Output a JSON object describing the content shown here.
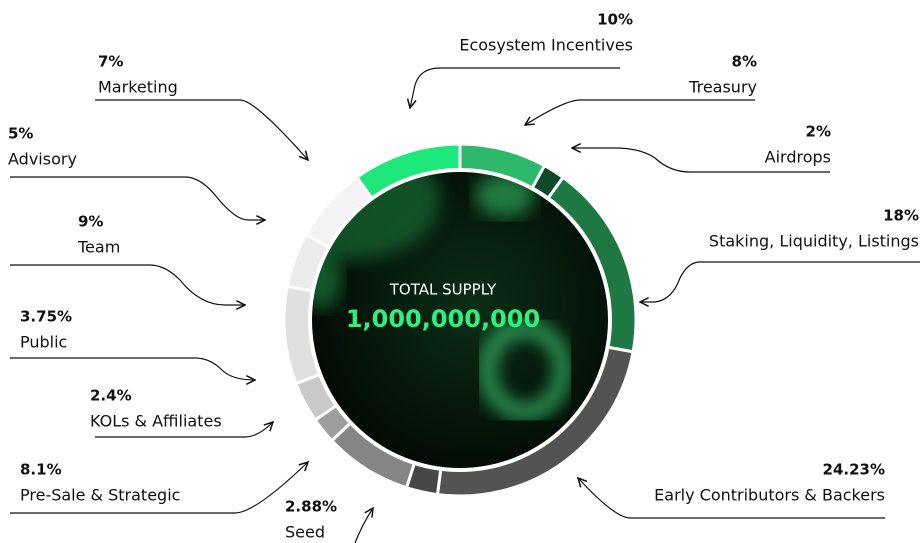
{
  "chart_data": {
    "type": "donut",
    "center_label": "TOTAL SUPPLY",
    "center_value": "1,000,000,000",
    "categories": [
      "Ecosystem Incentives",
      "Treasury",
      "Airdrops",
      "Staking, Liquidity, Listings",
      "Early Contributors & Backers",
      "Seed",
      "Pre-Sale & Strategic",
      "KOLs & Affiliates",
      "Public",
      "Team",
      "Advisory",
      "Marketing"
    ],
    "values": [
      10,
      8,
      2,
      18,
      24.23,
      2.88,
      8.1,
      2.4,
      3.75,
      9,
      5,
      7
    ],
    "value_labels": [
      "10%",
      "8%",
      "2%",
      "18%",
      "24.23%",
      "2.88%",
      "8.1%",
      "2.4%",
      "3.75%",
      "9%",
      "5%",
      "7%"
    ],
    "colors": [
      "#1fe87b",
      "#2db86c",
      "#0e4a2a",
      "#1e7843",
      "#535353",
      "#474747",
      "#858585",
      "#9e9e9e",
      "#c9c9c9",
      "#e0e0e0",
      "#ebebeb",
      "#f3f3f3"
    ]
  }
}
